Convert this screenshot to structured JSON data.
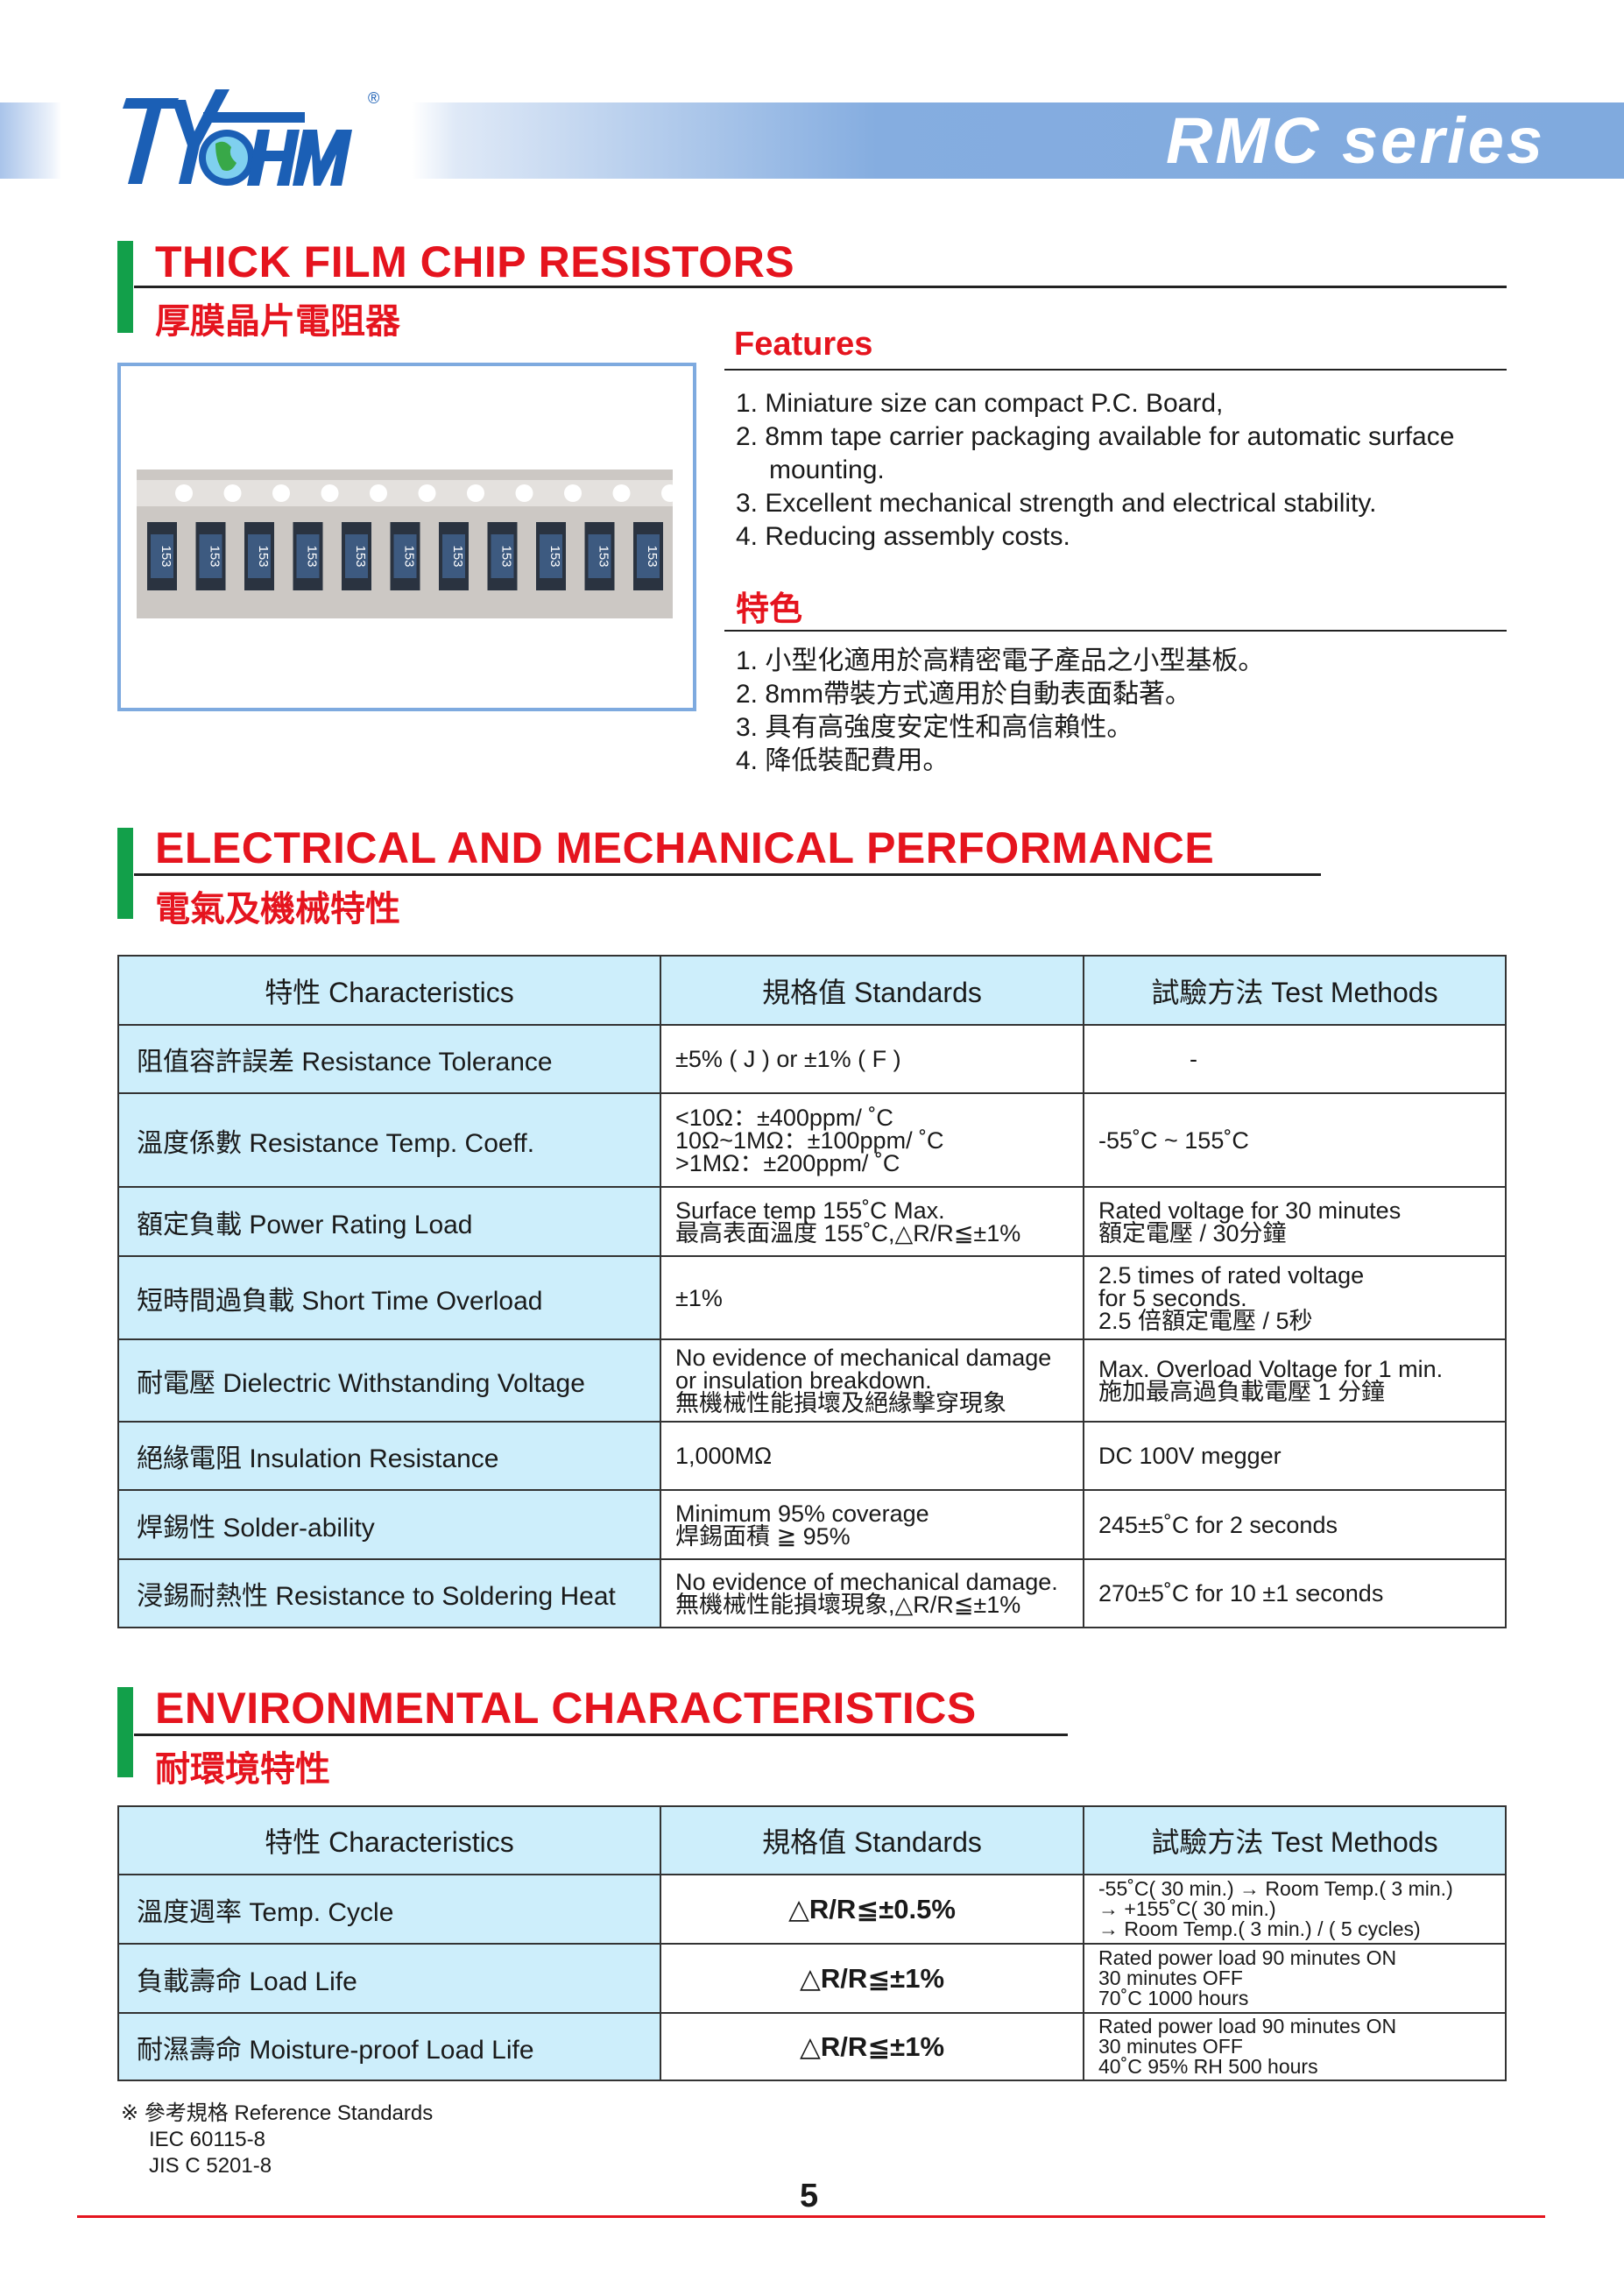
{
  "header": {
    "series": "RMC series",
    "logo_text": "TY-OHM",
    "registered": "®"
  },
  "section1": {
    "title": "THICK FILM CHIP RESISTORS",
    "subtitle": "厚膜晶片電阻器"
  },
  "photo": {
    "chip_label": "153",
    "chip_count": 11
  },
  "features": {
    "title": "Features",
    "items": [
      "1. Miniature size can compact P.C. Board,",
      "2. 8mm tape carrier packaging available for automatic surface",
      "mounting.",
      "3. Excellent mechanical strength and electrical stability.",
      "4. Reducing assembly costs."
    ]
  },
  "features_zh": {
    "title": "特色",
    "items": [
      "1. 小型化適用於高精密電子產品之小型基板。",
      "2. 8mm帶裝方式適用於自動表面黏著。",
      "3. 具有高強度安定性和高信賴性。",
      "4. 降低裝配費用。"
    ]
  },
  "section2": {
    "title": "ELECTRICAL AND MECHANICAL PERFORMANCE",
    "subtitle": "電氣及機械特性"
  },
  "table1": {
    "headers": [
      "特性  Characteristics",
      "規格值  Standards",
      "試驗方法  Test Methods"
    ],
    "rows": [
      {
        "c": "阻值容許誤差  Resistance Tolerance",
        "s": [
          "±5% ( J ) or ±1% ( F )"
        ],
        "m": [
          "-"
        ]
      },
      {
        "c": "溫度係數  Resistance Temp. Coeff.",
        "s": [
          "<10Ω：±400ppm/ ˚C",
          "10Ω~1MΩ：±100ppm/ ˚C",
          ">1MΩ：±200ppm/ ˚C"
        ],
        "m": [
          "-55˚C ~ 155˚C"
        ]
      },
      {
        "c": "額定負載 Power Rating Load",
        "s": [
          "Surface temp 155˚C Max.",
          "最高表面溫度 155˚C,△R/R≦±1%"
        ],
        "m": [
          "Rated voltage for 30 minutes",
          "額定電壓 / 30分鐘"
        ]
      },
      {
        "c": "短時間過負載  Short Time Overload",
        "s": [
          " ±1%"
        ],
        "m": [
          "2.5 times of rated voltage",
          "for 5 seconds.",
          "2.5 倍額定電壓 / 5秒"
        ]
      },
      {
        "c": "耐電壓 Dielectric Withstanding Voltage",
        "s": [
          "No evidence of mechanical damage",
          "or insulation breakdown.",
          "無機械性能損壞及絕緣擊穿現象"
        ],
        "m": [
          "Max. Overload Voltage for 1 min.",
          "施加最高過負載電壓 1 分鐘"
        ]
      },
      {
        "c": "絕緣電阻 Insulation Resistance",
        "s": [
          " 1,000MΩ"
        ],
        "m": [
          "DC 100V megger"
        ]
      },
      {
        "c": "焊錫性 Solder-ability",
        "s": [
          "Minimum 95% coverage",
          "焊錫面積 ≧ 95%"
        ],
        "m": [
          "245±5˚C for 2 seconds"
        ]
      },
      {
        "c": "浸錫耐熱性 Resistance to Soldering Heat",
        "s": [
          "No evidence of mechanical damage.",
          "無機械性能損壞現象,△R/R≦±1%"
        ],
        "m": [
          "270±5˚C for 10 ±1 seconds"
        ]
      }
    ]
  },
  "section3": {
    "title": "ENVIRONMENTAL CHARACTERISTICS",
    "subtitle": "耐環境特性"
  },
  "table2": {
    "headers": [
      "特性  Characteristics",
      "規格值  Standards",
      "試驗方法  Test Methods"
    ],
    "rows": [
      {
        "c": "溫度週率 Temp. Cycle",
        "s": "△R/R≦±0.5%",
        "m": [
          "-55˚C( 30 min.) → Room Temp.( 3 min.)",
          "→ +155˚C( 30 min.)",
          "→ Room Temp.( 3 min.) / ( 5 cycles)"
        ]
      },
      {
        "c": "負載壽命 Load Life",
        "s": "△R/R≦±1%",
        "m": [
          "Rated power load 90 minutes ON",
          "30 minutes OFF",
          "70˚C 1000 hours"
        ]
      },
      {
        "c": "耐濕壽命 Moisture-proof Load Life",
        "s": "△R/R≦±1%",
        "m": [
          "Rated power load 90 minutes ON",
          "30 minutes OFF",
          "40˚C 95% RH 500 hours"
        ]
      }
    ]
  },
  "footnote": {
    "title": "※ 參考規格 Reference Standards",
    "items": [
      "IEC 60115-8",
      "JIS C 5201-8"
    ]
  },
  "page_number": "5",
  "colors": {
    "title_red": "#e5141e",
    "green_bar": "#12a04a",
    "header_blue": "#80aade",
    "table_header": "#cdeefb",
    "logo_blue": "#1b5fb5"
  }
}
